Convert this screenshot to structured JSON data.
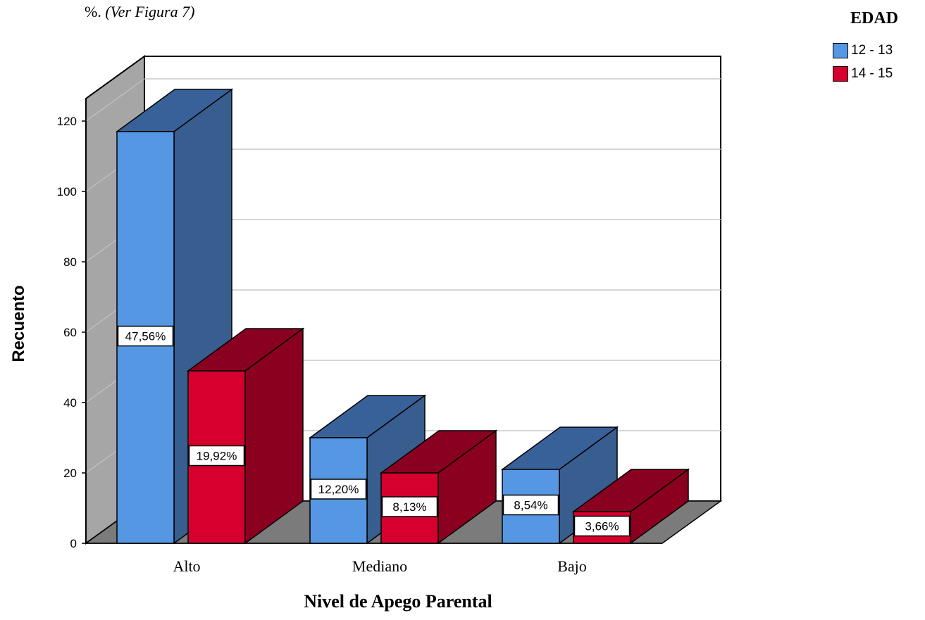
{
  "caption": {
    "prefix": "%. ",
    "text": "(Ver Figura 7)"
  },
  "chart_data": {
    "type": "bar",
    "style": "3d-clustered",
    "categories": [
      "Alto",
      "Mediano",
      "Bajo"
    ],
    "xlabel": "Nivel de Apego Parental",
    "ylabel": "Recuento",
    "ylim": [
      0,
      120
    ],
    "yticks": [
      0,
      20,
      40,
      60,
      80,
      100,
      120
    ],
    "grid": true,
    "legend": {
      "title": "EDAD",
      "placement": "top-right"
    },
    "series": [
      {
        "name": "12 - 13",
        "color": "#5597e3",
        "top_color": "#386199",
        "side_color": "#385d8f",
        "values": [
          117,
          30,
          21
        ],
        "labels": [
          "47,56%",
          "12,20%",
          "8,54%"
        ]
      },
      {
        "name": "14 - 15",
        "color": "#d5002d",
        "top_color": "#8a0020",
        "side_color": "#8b001f",
        "values": [
          49,
          20,
          9
        ],
        "labels": [
          "19,92%",
          "8,13%",
          "3,66%"
        ]
      }
    ]
  }
}
